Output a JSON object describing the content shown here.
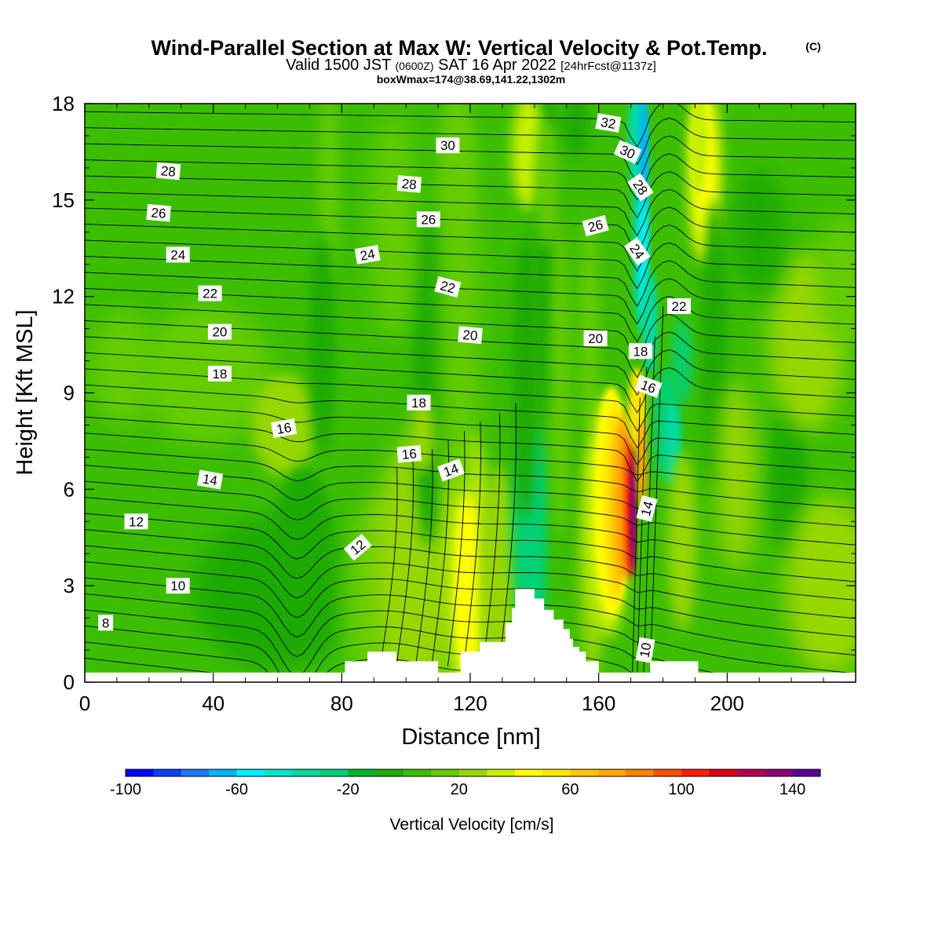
{
  "chart_data": {
    "type": "heatmap",
    "title": "Wind-Parallel Section at Max W: Vertical Velocity & Pot.Temp.",
    "title_mark": "(C)",
    "subtitle_main": "Valid 1500 JST",
    "subtitle_utc": "(0600Z)",
    "subtitle_date": "SAT 16 Apr 2022",
    "subtitle_fcst": "[24hrFcst@1137z]",
    "info_line": "boxWmax=174@38.69,141.22,1302m",
    "xlabel": "Distance [nm]",
    "ylabel": "Height [Kft MSL]",
    "xlim": [
      0,
      240
    ],
    "ylim": [
      0,
      18
    ],
    "x_ticks": [
      "0",
      "40",
      "80",
      "120",
      "160",
      "200"
    ],
    "y_ticks": [
      "0",
      "3",
      "6",
      "9",
      "12",
      "15",
      "18"
    ],
    "colorbar": {
      "label": "Vertical Velocity [cm/s]",
      "range": [
        -100,
        150
      ],
      "tick_labels": [
        "-100",
        "-60",
        "-20",
        "20",
        "60",
        "100",
        "140"
      ],
      "colors": [
        "#0000ff",
        "#0a3dff",
        "#1e78ff",
        "#00b4ff",
        "#00f0ff",
        "#00e6c8",
        "#00dca0",
        "#00d278",
        "#00b428",
        "#1eaa00",
        "#3cbe00",
        "#64cd00",
        "#96d700",
        "#c8f000",
        "#ffff00",
        "#ffe600",
        "#ffc800",
        "#ffaa00",
        "#ff8200",
        "#ff5000",
        "#ff1e00",
        "#dc0014",
        "#b40050",
        "#8c0078",
        "#5a0096"
      ]
    },
    "max_w": 174,
    "theta_contour_labels": [
      "8",
      "10",
      "10",
      "12",
      "12",
      "14",
      "14",
      "14",
      "16",
      "16",
      "16",
      "18",
      "18",
      "18",
      "20",
      "20",
      "20",
      "22",
      "22",
      "22",
      "24",
      "24",
      "24",
      "26",
      "26",
      "26",
      "28",
      "28",
      "28",
      "30",
      "30",
      "32"
    ]
  }
}
